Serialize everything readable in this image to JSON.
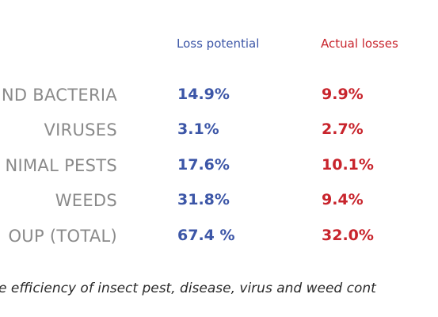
{
  "table": {
    "headers": {
      "potential": "Loss potential",
      "actual": "Actual losses"
    },
    "rows": [
      {
        "label": "ND BACTERIA",
        "potential": "14.9%",
        "actual": "9.9%"
      },
      {
        "label": "VIRUSES",
        "potential": "3.1%",
        "actual": "2.7%"
      },
      {
        "label": "NIMAL PESTS",
        "potential": "17.6%",
        "actual": "10.1%"
      },
      {
        "label": "WEEDS",
        "potential": "31.8%",
        "actual": "9.4%"
      },
      {
        "label": "OUP (TOTAL)",
        "potential": "67.4 %",
        "actual": "32.0%"
      }
    ],
    "caption": "e efficiency of insect pest, disease, virus and weed cont"
  },
  "colors": {
    "potential": "#3c56a7",
    "actual": "#c8242c",
    "label": "#8a8a8a"
  }
}
